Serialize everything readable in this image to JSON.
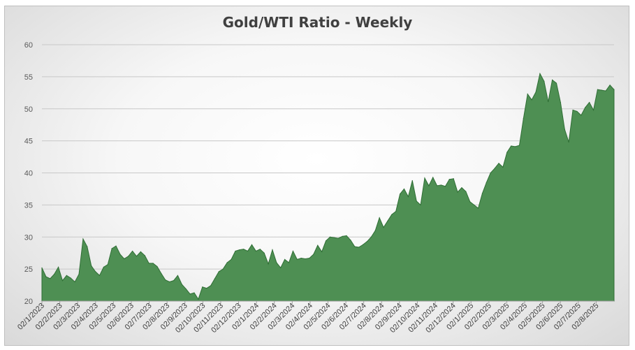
{
  "chart_data": {
    "type": "area",
    "title": "Gold/WTI Ratio - Weekly",
    "xlabel": "",
    "ylabel": "",
    "ylim": [
      20,
      60
    ],
    "yticks": [
      20,
      25,
      30,
      35,
      40,
      45,
      50,
      55,
      60
    ],
    "grid": true,
    "legend": "none",
    "colors": {
      "area_fill": "#4e8f53",
      "area_stroke": "#2f6e35"
    },
    "x_ticks": [
      "02/1/2023",
      "02/2/2023",
      "02/3/2023",
      "02/4/2023",
      "02/5/2023",
      "02/6/2023",
      "02/7/2023",
      "02/8/2023",
      "02/9/2023",
      "02/10/2023",
      "02/11/2023",
      "02/12/2023",
      "02/1/2024",
      "02/2/2024",
      "02/3/2024",
      "02/4/2024",
      "02/5/2024",
      "02/6/2024",
      "02/7/2024",
      "02/8/2024",
      "02/9/2024",
      "02/10/2024",
      "02/11/2024",
      "02/12/2024",
      "02/1/2025",
      "02/2/2025",
      "02/3/2025",
      "02/4/2025",
      "02/5/2025",
      "02/6/2025",
      "02/7/2025",
      "02/8/2025"
    ],
    "values": [
      25.2,
      23.8,
      23.5,
      24.2,
      25.3,
      23.2,
      24.0,
      23.6,
      23.0,
      24.2,
      29.7,
      28.5,
      25.5,
      24.6,
      24.0,
      25.3,
      25.7,
      28.2,
      28.6,
      27.3,
      26.6,
      27.0,
      27.8,
      27.0,
      27.7,
      27.1,
      25.9,
      25.9,
      25.4,
      24.3,
      23.3,
      23.0,
      23.2,
      24.0,
      22.6,
      21.9,
      21.1,
      21.3,
      20.3,
      22.2,
      22.0,
      22.4,
      23.5,
      24.6,
      25.0,
      26.0,
      26.5,
      27.8,
      28.0,
      28.1,
      27.8,
      28.8,
      27.8,
      28.1,
      27.5,
      25.8,
      28.0,
      26.0,
      25.2,
      26.5,
      26.0,
      27.8,
      26.5,
      26.7,
      26.6,
      26.7,
      27.3,
      28.7,
      27.7,
      29.4,
      30.0,
      29.9,
      29.8,
      30.1,
      30.2,
      29.5,
      28.5,
      28.4,
      28.8,
      29.3,
      30.0,
      31.0,
      33.0,
      31.5,
      32.5,
      33.5,
      34.0,
      36.7,
      37.5,
      36.3,
      38.8,
      35.6,
      35.0,
      39.2,
      38.0,
      39.3,
      38.0,
      38.1,
      37.9,
      39.0,
      39.1,
      37.0,
      37.7,
      37.1,
      35.5,
      35.0,
      34.5,
      36.8,
      38.5,
      40.0,
      40.7,
      41.5,
      40.9,
      43.2,
      44.2,
      44.1,
      44.3,
      48.5,
      52.3,
      51.4,
      52.6,
      55.5,
      54.3,
      51.1,
      54.5,
      54.0,
      51.0,
      46.8,
      44.8,
      49.8,
      49.6,
      49.0,
      50.2,
      51.0,
      49.8,
      53.0,
      52.9,
      52.8,
      53.7,
      53.0
    ]
  }
}
